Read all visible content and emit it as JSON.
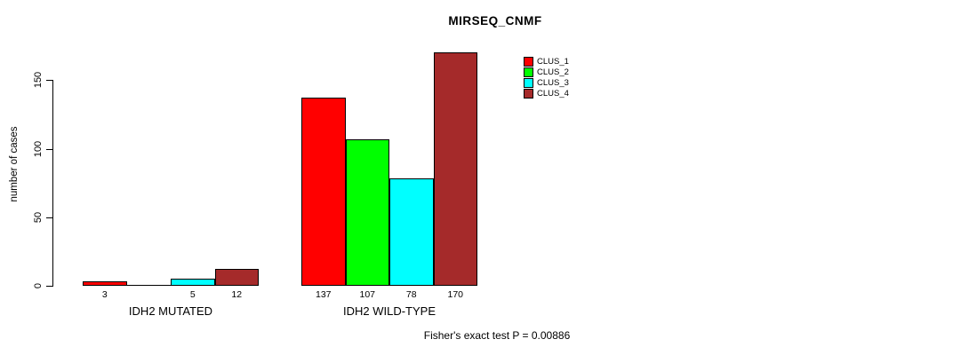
{
  "chart_data": {
    "type": "bar",
    "title": "MIRSEQ_CNMF",
    "ylabel": "number of cases",
    "xlabel": "",
    "groups": [
      "IDH2 MUTATED",
      "IDH2 WILD-TYPE"
    ],
    "series": [
      {
        "name": "CLUS_1",
        "color": "#FF0000",
        "values": [
          3,
          137
        ]
      },
      {
        "name": "CLUS_2",
        "color": "#00FF00",
        "values": [
          0,
          107
        ]
      },
      {
        "name": "CLUS_3",
        "color": "#00FFFF",
        "values": [
          5,
          78
        ]
      },
      {
        "name": "CLUS_4",
        "color": "#A52A2A",
        "values": [
          12,
          170
        ]
      }
    ],
    "bar_value_labels": [
      [
        "3",
        "",
        "5",
        "12"
      ],
      [
        "137",
        "107",
        "78",
        "170"
      ]
    ],
    "yticks": [
      0,
      50,
      100,
      150
    ],
    "ylim": [
      0,
      170
    ],
    "grid": false,
    "legend_position": "top-right",
    "annotation": "Fisher's exact test P = 0.00886"
  }
}
